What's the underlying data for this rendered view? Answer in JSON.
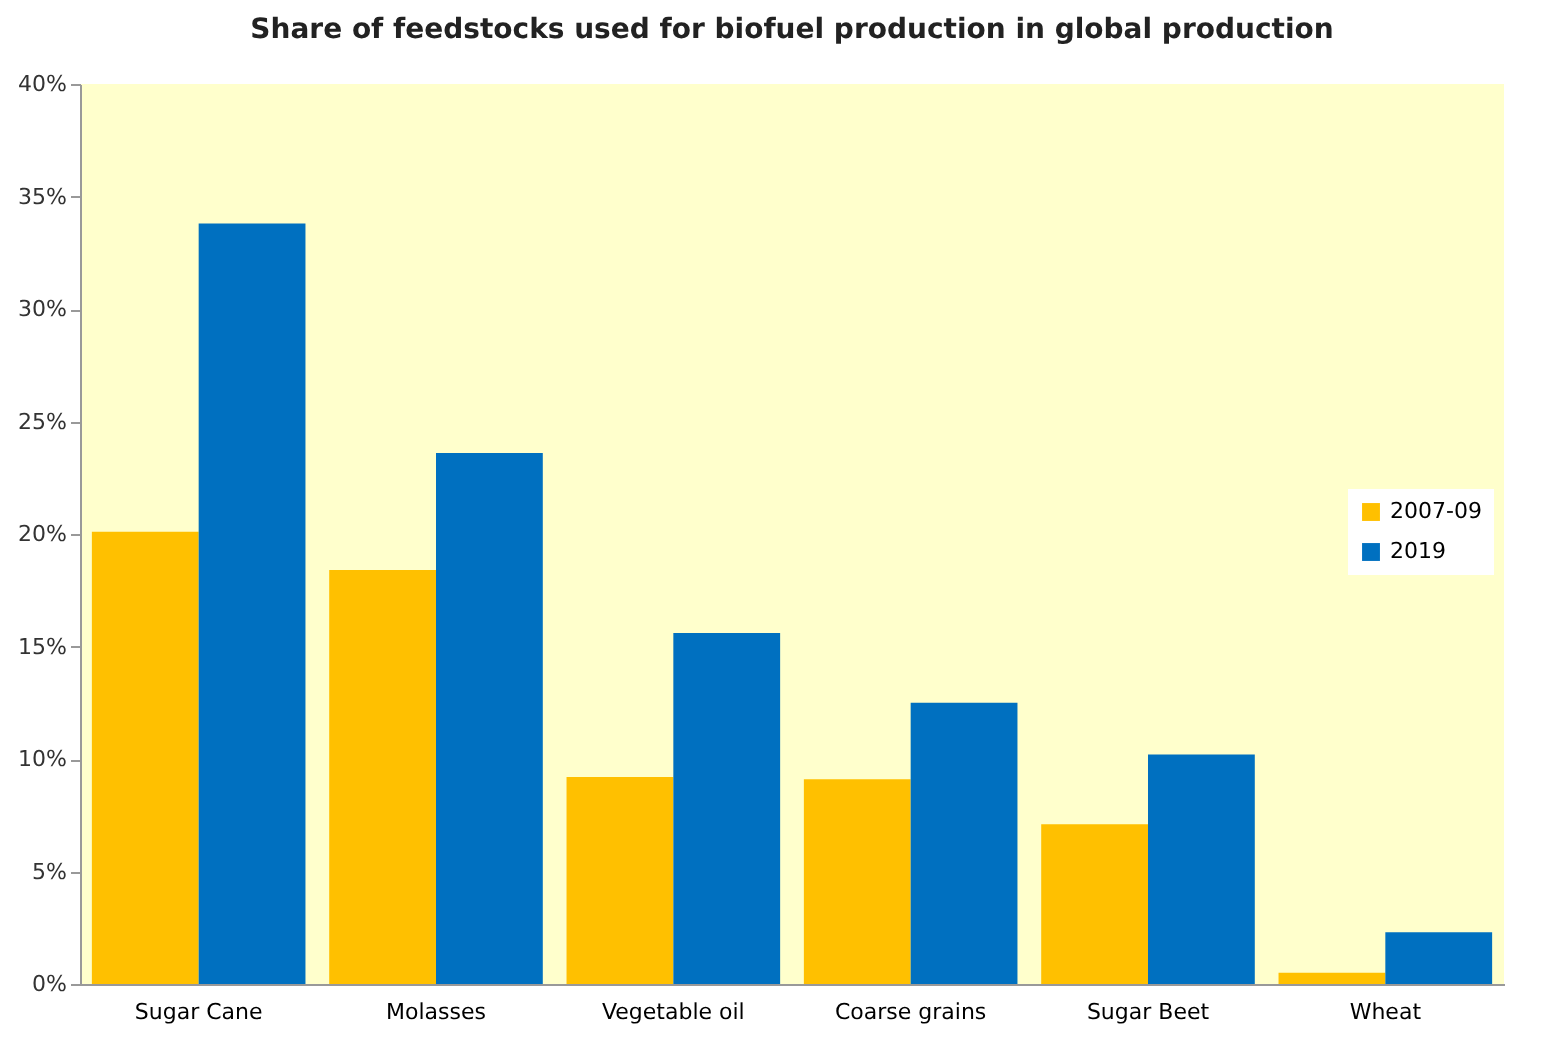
{
  "chart_data": {
    "type": "bar",
    "title": "Share of feedstocks used for biofuel production in global production",
    "categories": [
      "Sugar Cane",
      "Molasses",
      "Vegetable oil",
      "Coarse grains",
      "Sugar Beet",
      "Wheat"
    ],
    "series": [
      {
        "name": "2007-09",
        "color": "#ffc000",
        "values": [
          20.1,
          18.4,
          9.2,
          9.1,
          7.1,
          0.5
        ]
      },
      {
        "name": "2019",
        "color": "#0070c0",
        "values": [
          33.8,
          23.6,
          15.6,
          12.5,
          10.2,
          2.3
        ]
      }
    ],
    "ylim": [
      0,
      40
    ],
    "yticks": [
      {
        "value": 0,
        "label": "0%"
      },
      {
        "value": 5,
        "label": "5%"
      },
      {
        "value": 10,
        "label": "10%"
      },
      {
        "value": 15,
        "label": "15%"
      },
      {
        "value": 20,
        "label": "20%"
      },
      {
        "value": 25,
        "label": "25%"
      },
      {
        "value": 30,
        "label": "30%"
      },
      {
        "value": 35,
        "label": "35%"
      },
      {
        "value": 40,
        "label": "40%"
      }
    ],
    "grid": false,
    "legend": "right"
  }
}
